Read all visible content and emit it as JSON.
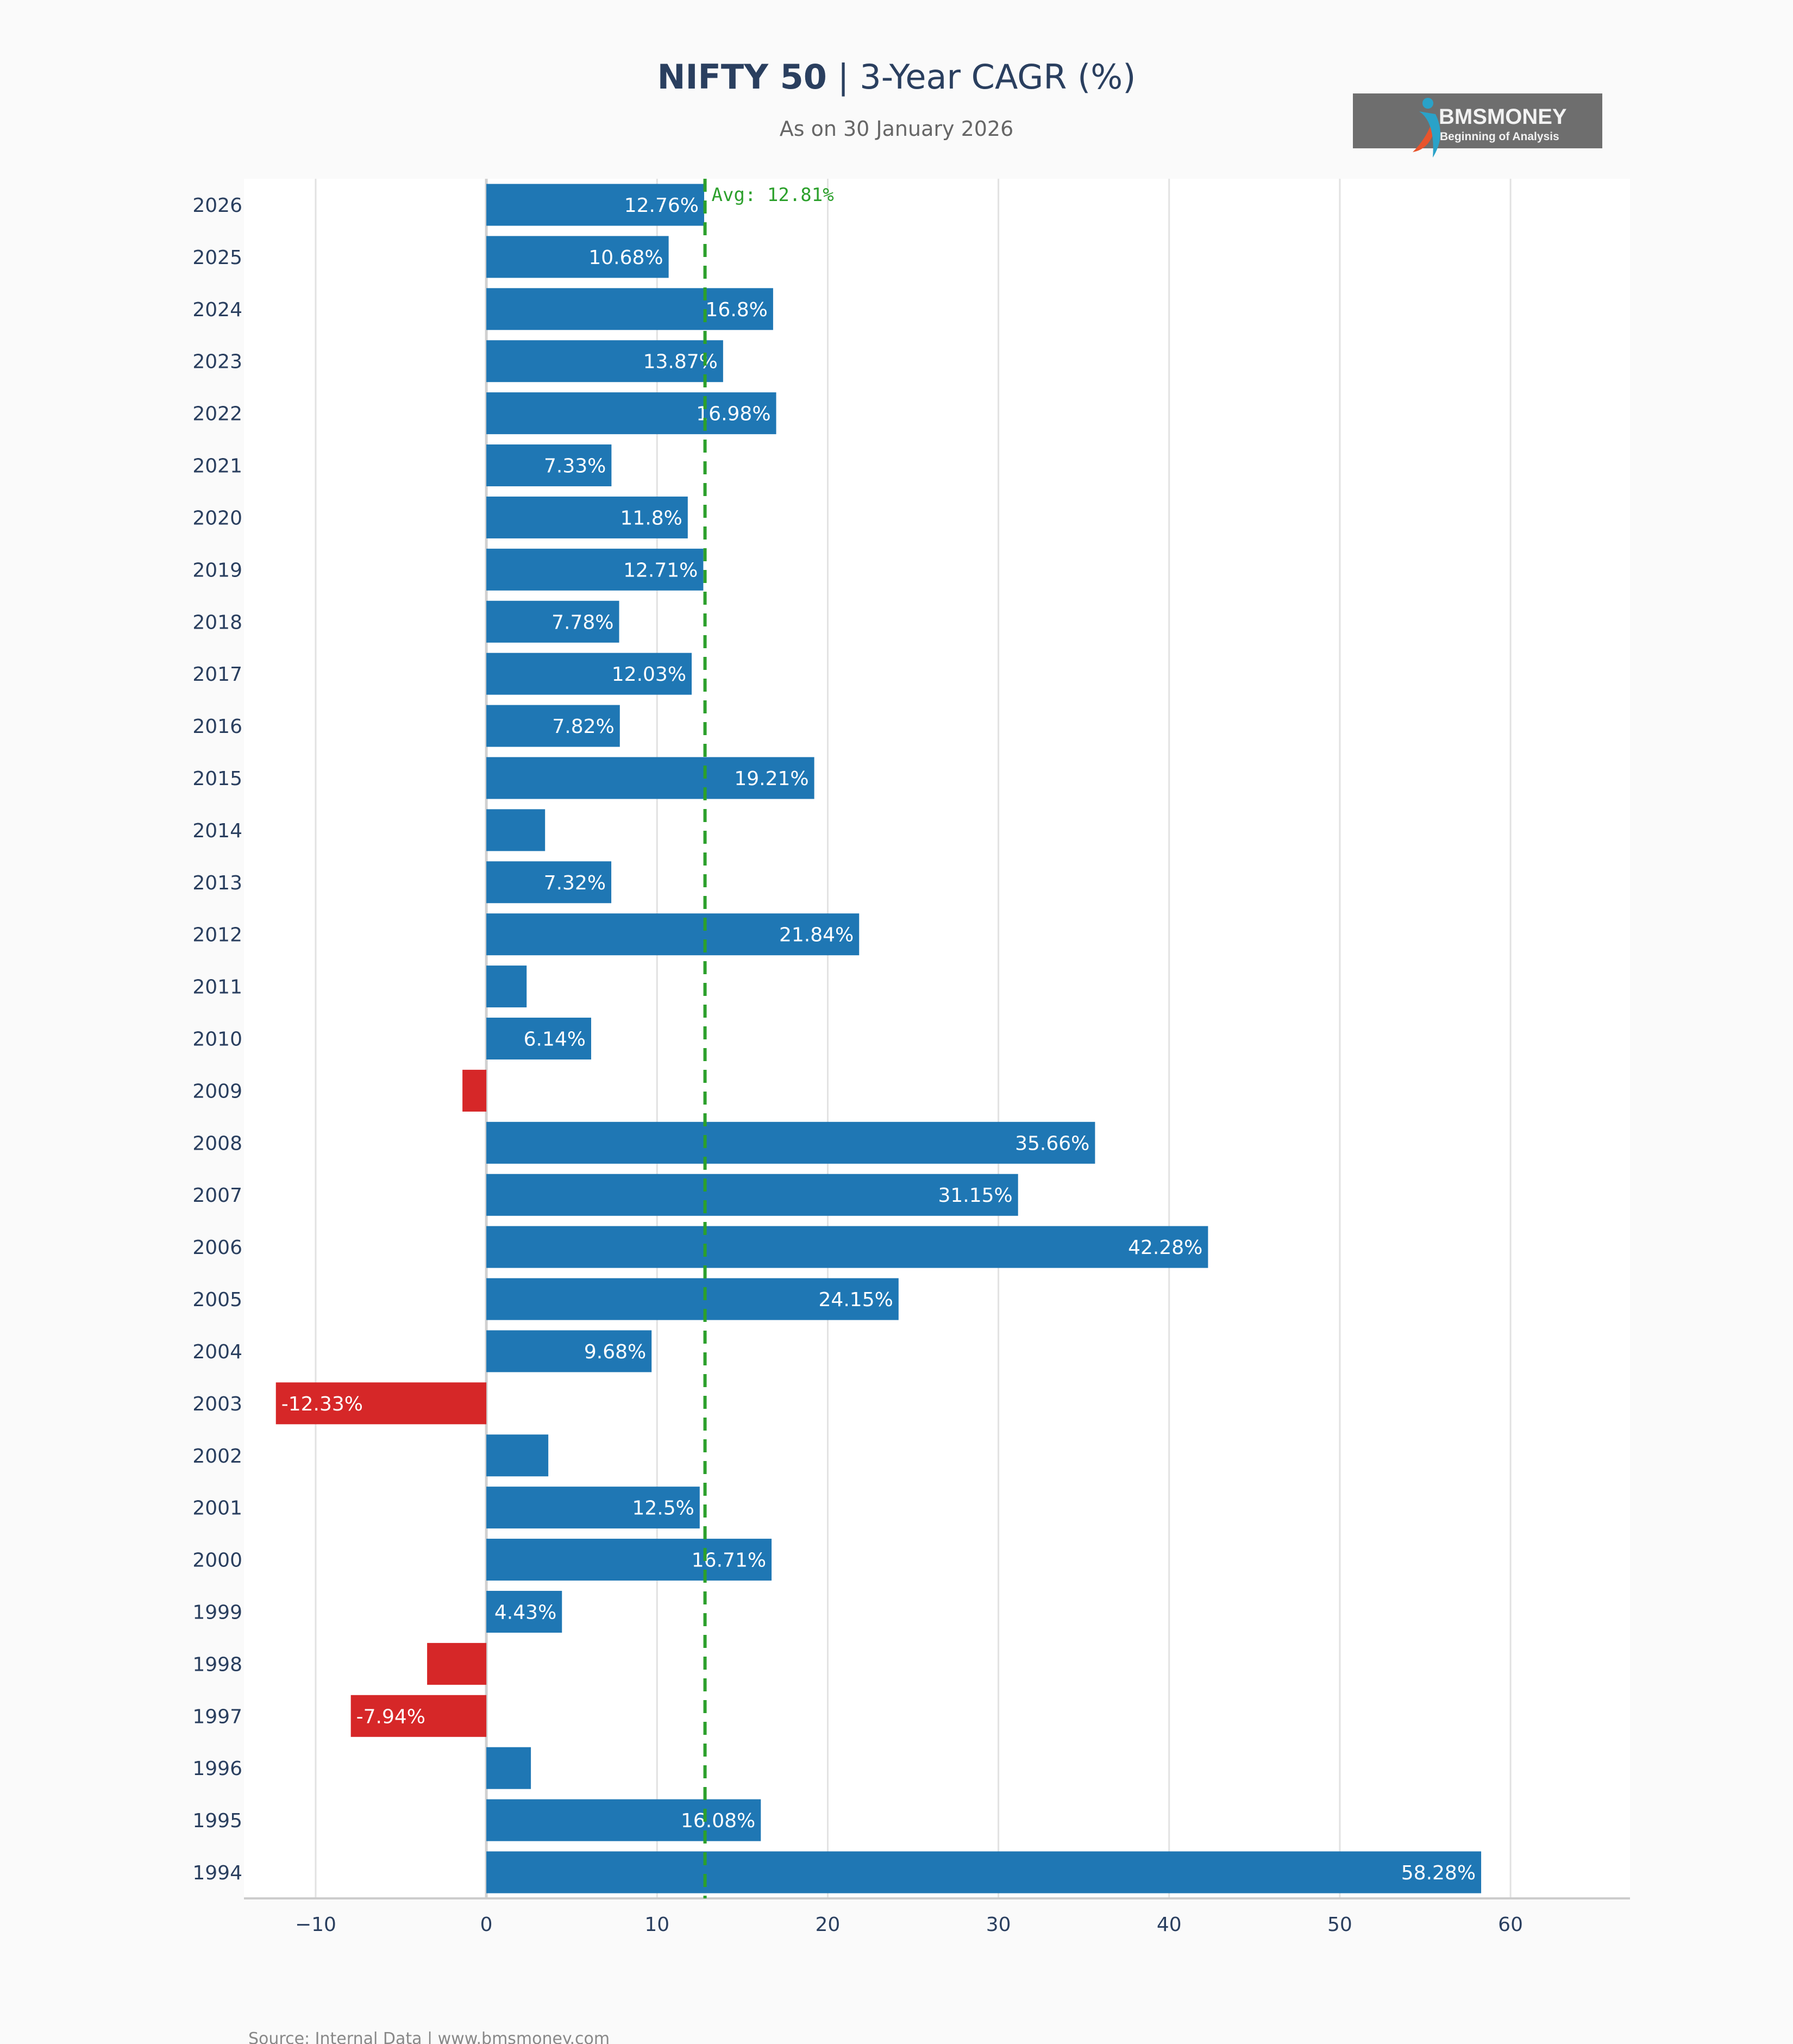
{
  "title": {
    "bold": "NIFTY 50",
    "rest": " | 3-Year CAGR (%)"
  },
  "subtitle": "As on 30 January 2026",
  "logo": {
    "name": "BMSMONEY",
    "tagline": "Beginning of Analysis",
    "bg": "#6e6e6e"
  },
  "source": "Source: Internal Data | www.bmsmoney.com",
  "chart_data": {
    "type": "bar",
    "orientation": "horizontal",
    "title": "NIFTY 50 | 3-Year CAGR (%)",
    "subtitle": "As on 30 January 2026",
    "xlabel": "",
    "ylabel": "",
    "xlim": [
      -14.2,
      67
    ],
    "xticks": [
      -10,
      0,
      10,
      20,
      30,
      40,
      50,
      60
    ],
    "xtick_labels": [
      "−10",
      "0",
      "10",
      "20",
      "30",
      "40",
      "50",
      "60"
    ],
    "grid": true,
    "colors": {
      "positive": "#1f77b4",
      "negative": "#d62728",
      "average": "#2ca02c"
    },
    "average": {
      "value": 12.81,
      "label": "Avg: 12.81%"
    },
    "categories": [
      "2026",
      "2025",
      "2024",
      "2023",
      "2022",
      "2021",
      "2020",
      "2019",
      "2018",
      "2017",
      "2016",
      "2015",
      "2014",
      "2013",
      "2012",
      "2011",
      "2010",
      "2009",
      "2008",
      "2007",
      "2006",
      "2005",
      "2004",
      "2003",
      "2002",
      "2001",
      "2000",
      "1999",
      "1998",
      "1997",
      "1996",
      "1995",
      "1994"
    ],
    "values": [
      12.76,
      10.68,
      16.8,
      13.87,
      16.98,
      7.33,
      11.8,
      12.71,
      7.78,
      12.03,
      7.82,
      19.21,
      3.44,
      7.32,
      21.84,
      2.36,
      6.14,
      -1.4,
      35.66,
      31.15,
      42.28,
      24.15,
      9.68,
      -12.33,
      3.63,
      12.5,
      16.71,
      4.43,
      -3.47,
      -7.94,
      2.61,
      16.08,
      58.28
    ],
    "labels": [
      "12.76%",
      "10.68%",
      "16.8%",
      "13.87%",
      "16.98%",
      "7.33%",
      "11.8%",
      "12.71%",
      "7.78%",
      "12.03%",
      "7.82%",
      "19.21%",
      null,
      "7.32%",
      "21.84%",
      null,
      "6.14%",
      null,
      "35.66%",
      "31.15%",
      "42.28%",
      "24.15%",
      "9.68%",
      "-12.33%",
      null,
      "12.5%",
      "16.71%",
      "4.43%",
      null,
      "-7.94%",
      null,
      "16.08%",
      "58.28%"
    ]
  }
}
